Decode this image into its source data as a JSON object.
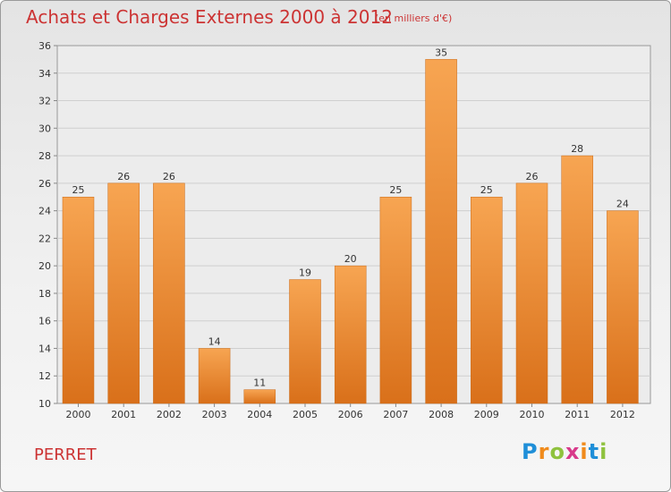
{
  "chart_data": {
    "type": "bar",
    "title": "Achats et Charges Externes 2000 à 2012",
    "subtitle": "(en milliers d'€)",
    "categories": [
      "2000",
      "2001",
      "2002",
      "2003",
      "2004",
      "2005",
      "2006",
      "2007",
      "2008",
      "2009",
      "2010",
      "2011",
      "2012"
    ],
    "values": [
      25,
      26,
      26,
      14,
      11,
      19,
      20,
      25,
      35,
      25,
      26,
      28,
      24
    ],
    "ylim": [
      10,
      36
    ],
    "yticks": [
      "10",
      "12",
      "14",
      "16",
      "18",
      "20",
      "22",
      "24",
      "26",
      "28",
      "30",
      "32",
      "34",
      "36"
    ],
    "grid": true,
    "bar_color": "#f08c2c",
    "xlabel": "",
    "ylabel": ""
  },
  "commune": "PERRET",
  "logo": {
    "text": "Proxiti"
  }
}
